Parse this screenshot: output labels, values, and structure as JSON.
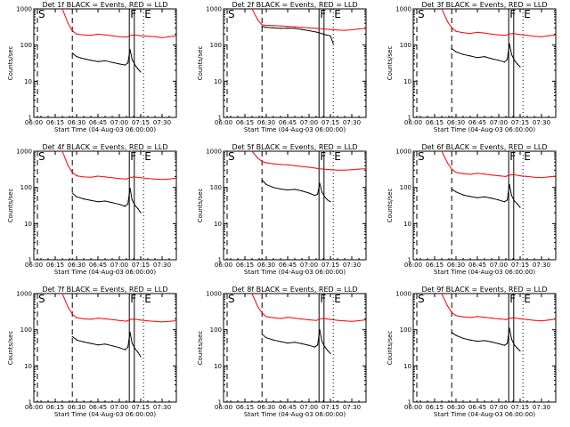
{
  "chart_data": {
    "type": "line",
    "ylabel": "Counts/sec",
    "xlabel": "Start Time (04-Aug-03 06:00:00)",
    "yscale": "log",
    "ylim": [
      1,
      1000
    ],
    "y_ticks": [
      "1",
      "10",
      "100",
      "1000"
    ],
    "x_range_minutes": [
      0,
      100
    ],
    "x_ticks": [
      {
        "label": "06:00",
        "min": 0
      },
      {
        "label": "06:15",
        "min": 15
      },
      {
        "label": "06:30",
        "min": 30
      },
      {
        "label": "06:45",
        "min": 45
      },
      {
        "label": "07:00",
        "min": 60
      },
      {
        "label": "07:15",
        "min": 75
      },
      {
        "label": "07:30",
        "min": 90
      }
    ],
    "series_colors": {
      "events": "#000000",
      "lld": "#ff0000"
    },
    "markers": [
      {
        "label": "S",
        "min": 2.5,
        "style": "dashed"
      },
      {
        "label": "",
        "min": 27,
        "style": "dashed"
      },
      {
        "label": "F",
        "min": 67,
        "style": "solid"
      },
      {
        "label": "",
        "min": 70.5,
        "style": "solid"
      },
      {
        "label": "E",
        "min": 77,
        "style": "dotted"
      }
    ],
    "panels": [
      {
        "title": "Det 1f BLACK = Events, RED = LLD",
        "series": [
          {
            "name": "Events",
            "color": "#000000",
            "x": [
              27,
              30,
              33,
              36,
              40,
              45,
              50,
              55,
              60,
              64,
              66,
              67.5,
              69,
              71,
              73,
              75
            ],
            "y": [
              60,
              48,
              44,
              41,
              38,
              35,
              37,
              33,
              30,
              28,
              32,
              75,
              40,
              28,
              22,
              18
            ]
          },
          {
            "name": "LLD",
            "color": "#ff0000",
            "x": [
              20,
              24,
              27,
              30,
              35,
              40,
              45,
              50,
              55,
              60,
              65,
              67,
              70,
              75,
              80,
              85,
              90,
              95,
              100
            ],
            "y": [
              1000,
              400,
              250,
              200,
              190,
              185,
              200,
              190,
              180,
              170,
              165,
              180,
              190,
              180,
              175,
              170,
              160,
              170,
              180
            ]
          }
        ]
      },
      {
        "title": "Det 2f BLACK = Events, RED = LLD",
        "series": [
          {
            "name": "Events",
            "color": "#000000",
            "x": [
              27,
              30,
              35,
              40,
              45,
              50,
              55,
              60,
              65,
              67,
              70,
              72,
              75,
              77
            ],
            "y": [
              330,
              310,
              300,
              290,
              295,
              290,
              270,
              250,
              230,
              220,
              200,
              190,
              180,
              110
            ]
          },
          {
            "name": "LLD",
            "color": "#ff0000",
            "x": [
              20,
              24,
              27,
              30,
              35,
              40,
              45,
              50,
              55,
              60,
              65,
              70,
              75,
              80,
              85,
              90,
              95,
              100
            ],
            "y": [
              1000,
              500,
              360,
              350,
              345,
              340,
              330,
              320,
              310,
              300,
              290,
              280,
              270,
              260,
              255,
              265,
              280,
              290
            ]
          }
        ]
      },
      {
        "title": "Det 3f BLACK = Events, RED = LLD",
        "series": [
          {
            "name": "Events",
            "color": "#000000",
            "x": [
              27,
              30,
              35,
              40,
              45,
              50,
              55,
              60,
              64,
              66,
              67.5,
              69,
              71,
              73,
              75
            ],
            "y": [
              80,
              65,
              55,
              50,
              45,
              48,
              42,
              38,
              34,
              40,
              110,
              55,
              38,
              30,
              25
            ]
          },
          {
            "name": "LLD",
            "color": "#ff0000",
            "x": [
              20,
              24,
              27,
              30,
              35,
              40,
              45,
              50,
              55,
              60,
              65,
              67,
              70,
              75,
              80,
              85,
              90,
              95,
              100
            ],
            "y": [
              1000,
              450,
              300,
              240,
              220,
              210,
              225,
              215,
              200,
              190,
              185,
              200,
              210,
              195,
              185,
              175,
              170,
              180,
              190
            ]
          }
        ]
      },
      {
        "title": "Det 4f BLACK = Events, RED = LLD",
        "series": [
          {
            "name": "Events",
            "color": "#000000",
            "x": [
              27,
              30,
              35,
              40,
              45,
              50,
              55,
              60,
              64,
              66,
              67.5,
              69,
              71,
              73,
              75
            ],
            "y": [
              70,
              55,
              48,
              44,
              40,
              42,
              38,
              34,
              30,
              35,
              95,
              45,
              32,
              26,
              20
            ]
          },
          {
            "name": "LLD",
            "color": "#ff0000",
            "x": [
              20,
              24,
              27,
              30,
              35,
              40,
              45,
              50,
              55,
              60,
              65,
              67,
              70,
              75,
              80,
              85,
              90,
              95,
              100
            ],
            "y": [
              1000,
              400,
              260,
              210,
              195,
              190,
              205,
              195,
              185,
              175,
              170,
              185,
              195,
              185,
              175,
              170,
              165,
              170,
              180
            ]
          }
        ]
      },
      {
        "title": "Det 5f BLACK = Events, RED = LLD",
        "series": [
          {
            "name": "Events",
            "color": "#000000",
            "x": [
              27,
              30,
              35,
              40,
              45,
              50,
              55,
              60,
              64,
              66,
              67.5,
              69,
              71,
              73,
              75
            ],
            "y": [
              160,
              120,
              100,
              90,
              85,
              88,
              80,
              70,
              60,
              65,
              130,
              75,
              55,
              45,
              40
            ]
          },
          {
            "name": "LLD",
            "color": "#ff0000",
            "x": [
              20,
              24,
              27,
              30,
              35,
              40,
              45,
              50,
              55,
              60,
              65,
              67,
              70,
              75,
              80,
              85,
              90,
              95,
              100
            ],
            "y": [
              1000,
              650,
              520,
              480,
              450,
              430,
              420,
              400,
              380,
              360,
              340,
              330,
              320,
              310,
              300,
              300,
              310,
              320,
              330
            ]
          }
        ]
      },
      {
        "title": "Det 6f BLACK = Events, RED = LLD",
        "series": [
          {
            "name": "Events",
            "color": "#000000",
            "x": [
              27,
              30,
              35,
              40,
              45,
              50,
              55,
              60,
              64,
              66,
              67.5,
              69,
              71,
              73,
              75
            ],
            "y": [
              90,
              75,
              62,
              56,
              52,
              55,
              50,
              45,
              40,
              45,
              120,
              60,
              42,
              35,
              28
            ]
          },
          {
            "name": "LLD",
            "color": "#ff0000",
            "x": [
              20,
              24,
              27,
              30,
              35,
              40,
              45,
              50,
              55,
              60,
              65,
              67,
              70,
              75,
              80,
              85,
              90,
              95,
              100
            ],
            "y": [
              1000,
              480,
              320,
              260,
              240,
              230,
              245,
              235,
              220,
              210,
              200,
              215,
              225,
              210,
              200,
              190,
              185,
              195,
              205
            ]
          }
        ]
      },
      {
        "title": "Det 7f BLACK = Events, RED = LLD",
        "series": [
          {
            "name": "Events",
            "color": "#000000",
            "x": [
              27,
              30,
              35,
              40,
              45,
              50,
              55,
              60,
              64,
              66,
              67.5,
              69,
              71,
              73,
              75
            ],
            "y": [
              65,
              52,
              46,
              42,
              38,
              40,
              36,
              32,
              28,
              33,
              85,
              42,
              30,
              24,
              18
            ]
          },
          {
            "name": "LLD",
            "color": "#ff0000",
            "x": [
              20,
              24,
              27,
              30,
              35,
              40,
              45,
              50,
              55,
              60,
              65,
              67,
              70,
              75,
              80,
              85,
              90,
              95,
              100
            ],
            "y": [
              1000,
              420,
              270,
              215,
              200,
              195,
              210,
              200,
              190,
              180,
              172,
              188,
              198,
              186,
              176,
              170,
              164,
              170,
              178
            ]
          }
        ]
      },
      {
        "title": "Det 8f BLACK = Events, RED = LLD",
        "series": [
          {
            "name": "Events",
            "color": "#000000",
            "x": [
              27,
              30,
              35,
              40,
              45,
              50,
              55,
              60,
              64,
              66,
              67.5,
              69,
              71,
              73,
              75
            ],
            "y": [
              75,
              60,
              52,
              47,
              43,
              45,
              41,
              37,
              33,
              38,
              100,
              48,
              34,
              27,
              22
            ]
          },
          {
            "name": "LLD",
            "color": "#ff0000",
            "x": [
              20,
              24,
              27,
              30,
              35,
              40,
              45,
              50,
              55,
              60,
              65,
              67,
              70,
              75,
              80,
              85,
              90,
              95,
              100
            ],
            "y": [
              1000,
              440,
              290,
              230,
              215,
              205,
              220,
              210,
              198,
              188,
              180,
              196,
              206,
              192,
              182,
              176,
              170,
              178,
              188
            ]
          }
        ]
      },
      {
        "title": "Det 9f BLACK = Events, RED = LLD",
        "series": [
          {
            "name": "Events",
            "color": "#000000",
            "x": [
              27,
              30,
              35,
              40,
              45,
              50,
              55,
              60,
              64,
              66,
              67.5,
              69,
              71,
              73,
              75
            ],
            "y": [
              85,
              70,
              58,
              52,
              48,
              50,
              46,
              41,
              37,
              42,
              110,
              55,
              38,
              31,
              26
            ]
          },
          {
            "name": "LLD",
            "color": "#ff0000",
            "x": [
              20,
              24,
              27,
              30,
              35,
              40,
              45,
              50,
              55,
              60,
              65,
              67,
              70,
              75,
              80,
              85,
              90,
              95,
              100
            ],
            "y": [
              1000,
              460,
              300,
              245,
              228,
              218,
              232,
              222,
              210,
              200,
              190,
              205,
              215,
              200,
              190,
              182,
              176,
              186,
              196
            ]
          }
        ]
      }
    ]
  }
}
